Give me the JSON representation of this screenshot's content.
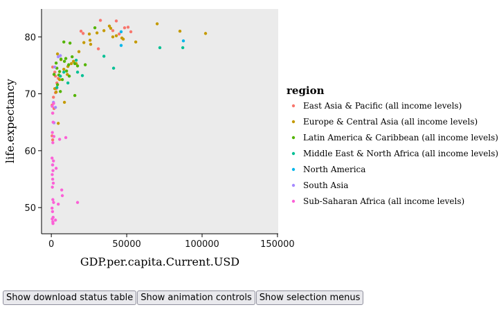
{
  "chart_data": {
    "type": "scatter",
    "xlabel": "GDP.per.capita.Current.USD",
    "ylabel": "life.expectancy",
    "legend_title": "region",
    "xlim": [
      -6500,
      150500
    ],
    "ylim": [
      45.4,
      84.9
    ],
    "xticks": [
      0,
      50000,
      100000,
      150000
    ],
    "yticks": [
      50,
      60,
      70,
      80
    ],
    "grid": false,
    "series": [
      {
        "name": "East Asia & Pacific (all income levels)",
        "color": "#F8766D",
        "x": [
          32570,
          43100,
          50900,
          48600,
          52750,
          31200,
          19700,
          21100,
          40800,
          45000,
          900,
          2300,
          3200,
          2750,
          1400,
          500,
          1800,
          900,
          500,
          900,
          3700,
          4600,
          2750
        ],
        "y": [
          82.9,
          82.8,
          81.7,
          81.6,
          80.9,
          77.9,
          81.0,
          80.6,
          81.1,
          80.5,
          74.7,
          73.8,
          70.9,
          70.2,
          69.4,
          68.0,
          67.4,
          66.6,
          62.6,
          61.9,
          71.9,
          72.7,
          73.1
        ]
      },
      {
        "name": "Europe & Central Asia (all income levels)",
        "color": "#C49A00",
        "x": [
          70200,
          102300,
          85300,
          56000,
          39400,
          38500,
          34900,
          40800,
          46800,
          43100,
          25700,
          25200,
          18300,
          21600,
          14700,
          13300,
          11000,
          8300,
          5500,
          4100,
          6400,
          8700,
          4600,
          3200,
          2300,
          10600,
          16500,
          26100,
          47700,
          30300
        ],
        "y": [
          82.3,
          80.6,
          81.0,
          79.1,
          81.5,
          81.9,
          81.1,
          80.0,
          79.8,
          80.2,
          79.4,
          80.5,
          77.4,
          79.0,
          75.7,
          75.3,
          74.8,
          74.3,
          72.5,
          77.0,
          76.0,
          68.5,
          64.8,
          70.3,
          70.9,
          73.4,
          75.3,
          78.7,
          79.6,
          80.7
        ]
      },
      {
        "name": "Latin America & Caribbean (all income levels)",
        "color": "#53B400",
        "x": [
          8300,
          12400,
          6400,
          9600,
          13800,
          11500,
          15600,
          17400,
          3200,
          3700,
          8700,
          5500,
          1800,
          10100,
          11900,
          15600,
          6000,
          4100,
          7300,
          5000,
          22500,
          28900
        ],
        "y": [
          79.1,
          78.9,
          76.1,
          76.2,
          76.5,
          75.1,
          75.3,
          74.9,
          75.4,
          74.5,
          75.7,
          73.9,
          73.4,
          74.0,
          73.1,
          69.7,
          70.4,
          71.6,
          72.5,
          73.3,
          75.1,
          81.6
        ]
      },
      {
        "name": "Middle East & North Africa (all income levels)",
        "color": "#00C094",
        "x": [
          87200,
          72000,
          41300,
          34900,
          20600,
          17400,
          8300,
          6000,
          11000,
          16500,
          3700
        ],
        "y": [
          78.1,
          78.1,
          74.5,
          76.6,
          73.2,
          73.8,
          73.8,
          73.1,
          71.9,
          75.9,
          71.1
        ]
      },
      {
        "name": "North America",
        "color": "#00B6EB",
        "x": [
          46300,
          87600,
          46300
        ],
        "y": [
          78.5,
          79.3,
          80.9
        ]
      },
      {
        "name": "South Asia",
        "color": "#A58AFF",
        "x": [
          1800,
          1400,
          2300,
          900,
          4600,
          2750,
          6000
        ],
        "y": [
          64.9,
          68.5,
          74.7,
          57.5,
          76.5,
          67.6,
          76.7
        ]
      },
      {
        "name": "Sub-Saharan Africa (all income levels)",
        "color": "#FB61D7",
        "x": [
          9600,
          5500,
          6900,
          7300,
          17400,
          4600,
          2750,
          3200,
          1000,
          600,
          1200,
          800,
          500,
          1500,
          1000,
          700,
          1300,
          900,
          600,
          1100,
          800,
          1400,
          500,
          1000,
          1700,
          700,
          1200,
          900,
          600,
          1500,
          1100
        ],
        "y": [
          62.3,
          62.0,
          53.1,
          52.1,
          50.9,
          50.6,
          47.8,
          56.9,
          47.5,
          48.0,
          48.3,
          49.3,
          49.9,
          50.9,
          51.4,
          53.6,
          54.3,
          55.0,
          55.8,
          56.5,
          57.5,
          58.2,
          58.7,
          61.4,
          62.5,
          63.2,
          65.0,
          66.6,
          67.8,
          68.3,
          47.2
        ]
      }
    ]
  },
  "buttons": [
    "Show download status table",
    "Show animation controls",
    "Show selection menus"
  ]
}
